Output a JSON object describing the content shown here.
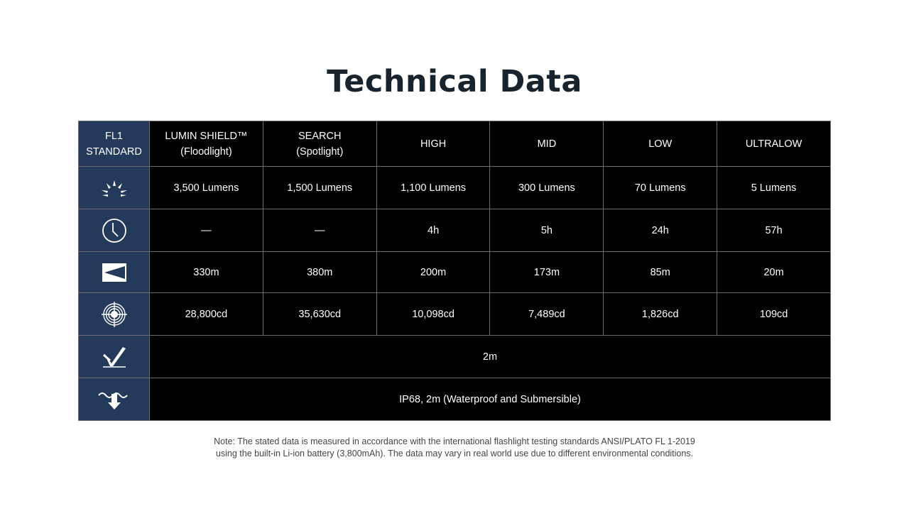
{
  "title": "Technical Data",
  "header": {
    "corner": [
      "FL1",
      "STANDARD"
    ],
    "columns": [
      [
        "LUMIN SHIELD™",
        "(Floodlight)"
      ],
      [
        "SEARCH",
        "(Spotlight)"
      ],
      [
        "HIGH",
        ""
      ],
      [
        "MID",
        ""
      ],
      [
        "LOW",
        ""
      ],
      [
        "ULTRALOW",
        ""
      ]
    ]
  },
  "rows": [
    {
      "icon": "light-output-icon",
      "values": [
        "3,500 Lumens",
        "1,500 Lumens",
        "1,100 Lumens",
        "300 Lumens",
        "70 Lumens",
        "5 Lumens"
      ]
    },
    {
      "icon": "clock-icon",
      "values": [
        "—",
        "—",
        "4h",
        "5h",
        "24h",
        "57h"
      ]
    },
    {
      "icon": "beam-distance-icon",
      "values": [
        "330m",
        "380m",
        "200m",
        "173m",
        "85m",
        "20m"
      ]
    },
    {
      "icon": "peak-intensity-icon",
      "values": [
        "28,800cd",
        "35,630cd",
        "10,098cd",
        "7,489cd",
        "1,826cd",
        "109cd"
      ]
    },
    {
      "icon": "impact-resistance-icon",
      "value": "2m"
    },
    {
      "icon": "waterproof-icon",
      "value": "IP68, 2m (Waterproof and Submersible)"
    }
  ],
  "note": [
    "Note: The stated data is measured in accordance with the international flashlight testing standards ANSI/PLATO FL 1-2019",
    "using the built-in Li-ion battery (3,800mAh). The data may vary in real world use due to different environmental conditions."
  ],
  "colors": {
    "sidebar": "#233a5a",
    "cells": "#000000",
    "title": "#17232d"
  }
}
